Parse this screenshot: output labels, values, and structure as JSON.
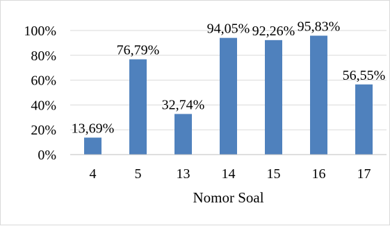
{
  "chart_data": {
    "type": "bar",
    "categories": [
      "4",
      "5",
      "13",
      "14",
      "15",
      "16",
      "17"
    ],
    "values": [
      13.69,
      76.79,
      32.74,
      94.05,
      92.26,
      95.83,
      56.55
    ],
    "data_labels": [
      "13,69%",
      "76,79%",
      "32,74%",
      "94,05%",
      "92,26%",
      "95,83%",
      "56,55%"
    ],
    "title": "",
    "xlabel": "Nomor Soal",
    "ylabel": "",
    "ylim": [
      0,
      100
    ],
    "y_ticks": [
      0,
      20,
      40,
      60,
      80,
      100
    ],
    "y_tick_labels": [
      "0%",
      "20%",
      "40%",
      "60%",
      "80%",
      "100%"
    ],
    "grid": "horizontal",
    "legend": "none",
    "bar_color": "#4f81bd",
    "gridline_color": "#d9d9d9",
    "axis_color": "#bfbfbf"
  }
}
